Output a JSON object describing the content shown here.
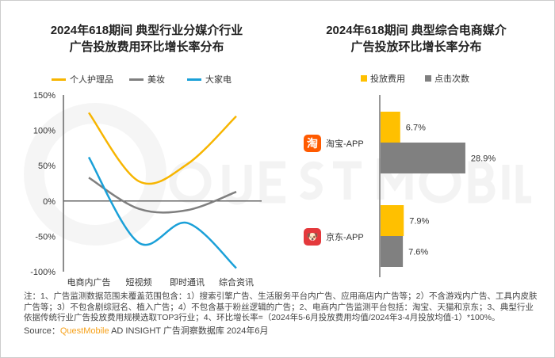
{
  "left_chart": {
    "title_line1": "2024年618期间 典型行业分媒介行业",
    "title_line2": "广告投放费用环比增长率分布"
  },
  "right_chart": {
    "title_line1": "2024年618期间 典型综合电商媒介",
    "title_line2": "广告投放环比增长率分布"
  },
  "watermark": "QUEST MOBILE",
  "chart_data": [
    {
      "type": "line",
      "title": "2024年618期间 典型行业分媒介行业广告投放费用环比增长率分布",
      "categories": [
        "电商内广告",
        "短视频",
        "即时通讯",
        "综合资讯"
      ],
      "y_ticks": [
        "150%",
        "100%",
        "50%",
        "0%",
        "-50%",
        "-100%"
      ],
      "ylim": [
        -100,
        150
      ],
      "legend_position": "top",
      "series": [
        {
          "name": "个人护理品",
          "color": "#f7b500",
          "values": [
            125,
            28,
            52,
            120
          ]
        },
        {
          "name": "美妆",
          "color": "#7f7f7f",
          "values": [
            33,
            -11,
            -13,
            13
          ]
        },
        {
          "name": "大家电",
          "color": "#1aa0d8",
          "values": [
            62,
            -59,
            -31,
            -95
          ]
        }
      ]
    },
    {
      "type": "bar",
      "orientation": "horizontal",
      "title": "2024年618期间 典型综合电商媒介广告投放环比增长率分布",
      "categories": [
        "淘宝-APP",
        "京东-APP"
      ],
      "legend_position": "top",
      "series": [
        {
          "name": "投放费用",
          "color": "#ffc000",
          "values": [
            6.7,
            7.9
          ],
          "labels": [
            "6.7%",
            "7.9%"
          ]
        },
        {
          "name": "点击次数",
          "color": "#808080",
          "values": [
            28.9,
            7.6
          ],
          "labels": [
            "28.9%",
            "7.6%"
          ]
        }
      ]
    }
  ],
  "footnote": "注：1、广告监测数据范围未覆盖范围包含：1）搜索引擎广告、生活服务平台内广告、应用商店内广告等；2）不含游戏内广告、工具内皮肤广告等；3）不包含剧综冠名、植入广告；4）不包含基于粉丝逻辑的广告；2、电商内广告监测平台包括：淘宝、天猫和京东；3、典型行业依据传统行业广告投放费用规模选取TOP3行业；4、环比增长率=（2024年5-6月投放费用均值/2024年3-4月投放均值-1）*100%。",
  "source": {
    "label": "Source：",
    "brand": "QuestMobile",
    "text": " AD INSIGHT 广告洞察数据库 2024年6月"
  },
  "icons": {
    "taobao": "淘",
    "jd": "🐶"
  }
}
